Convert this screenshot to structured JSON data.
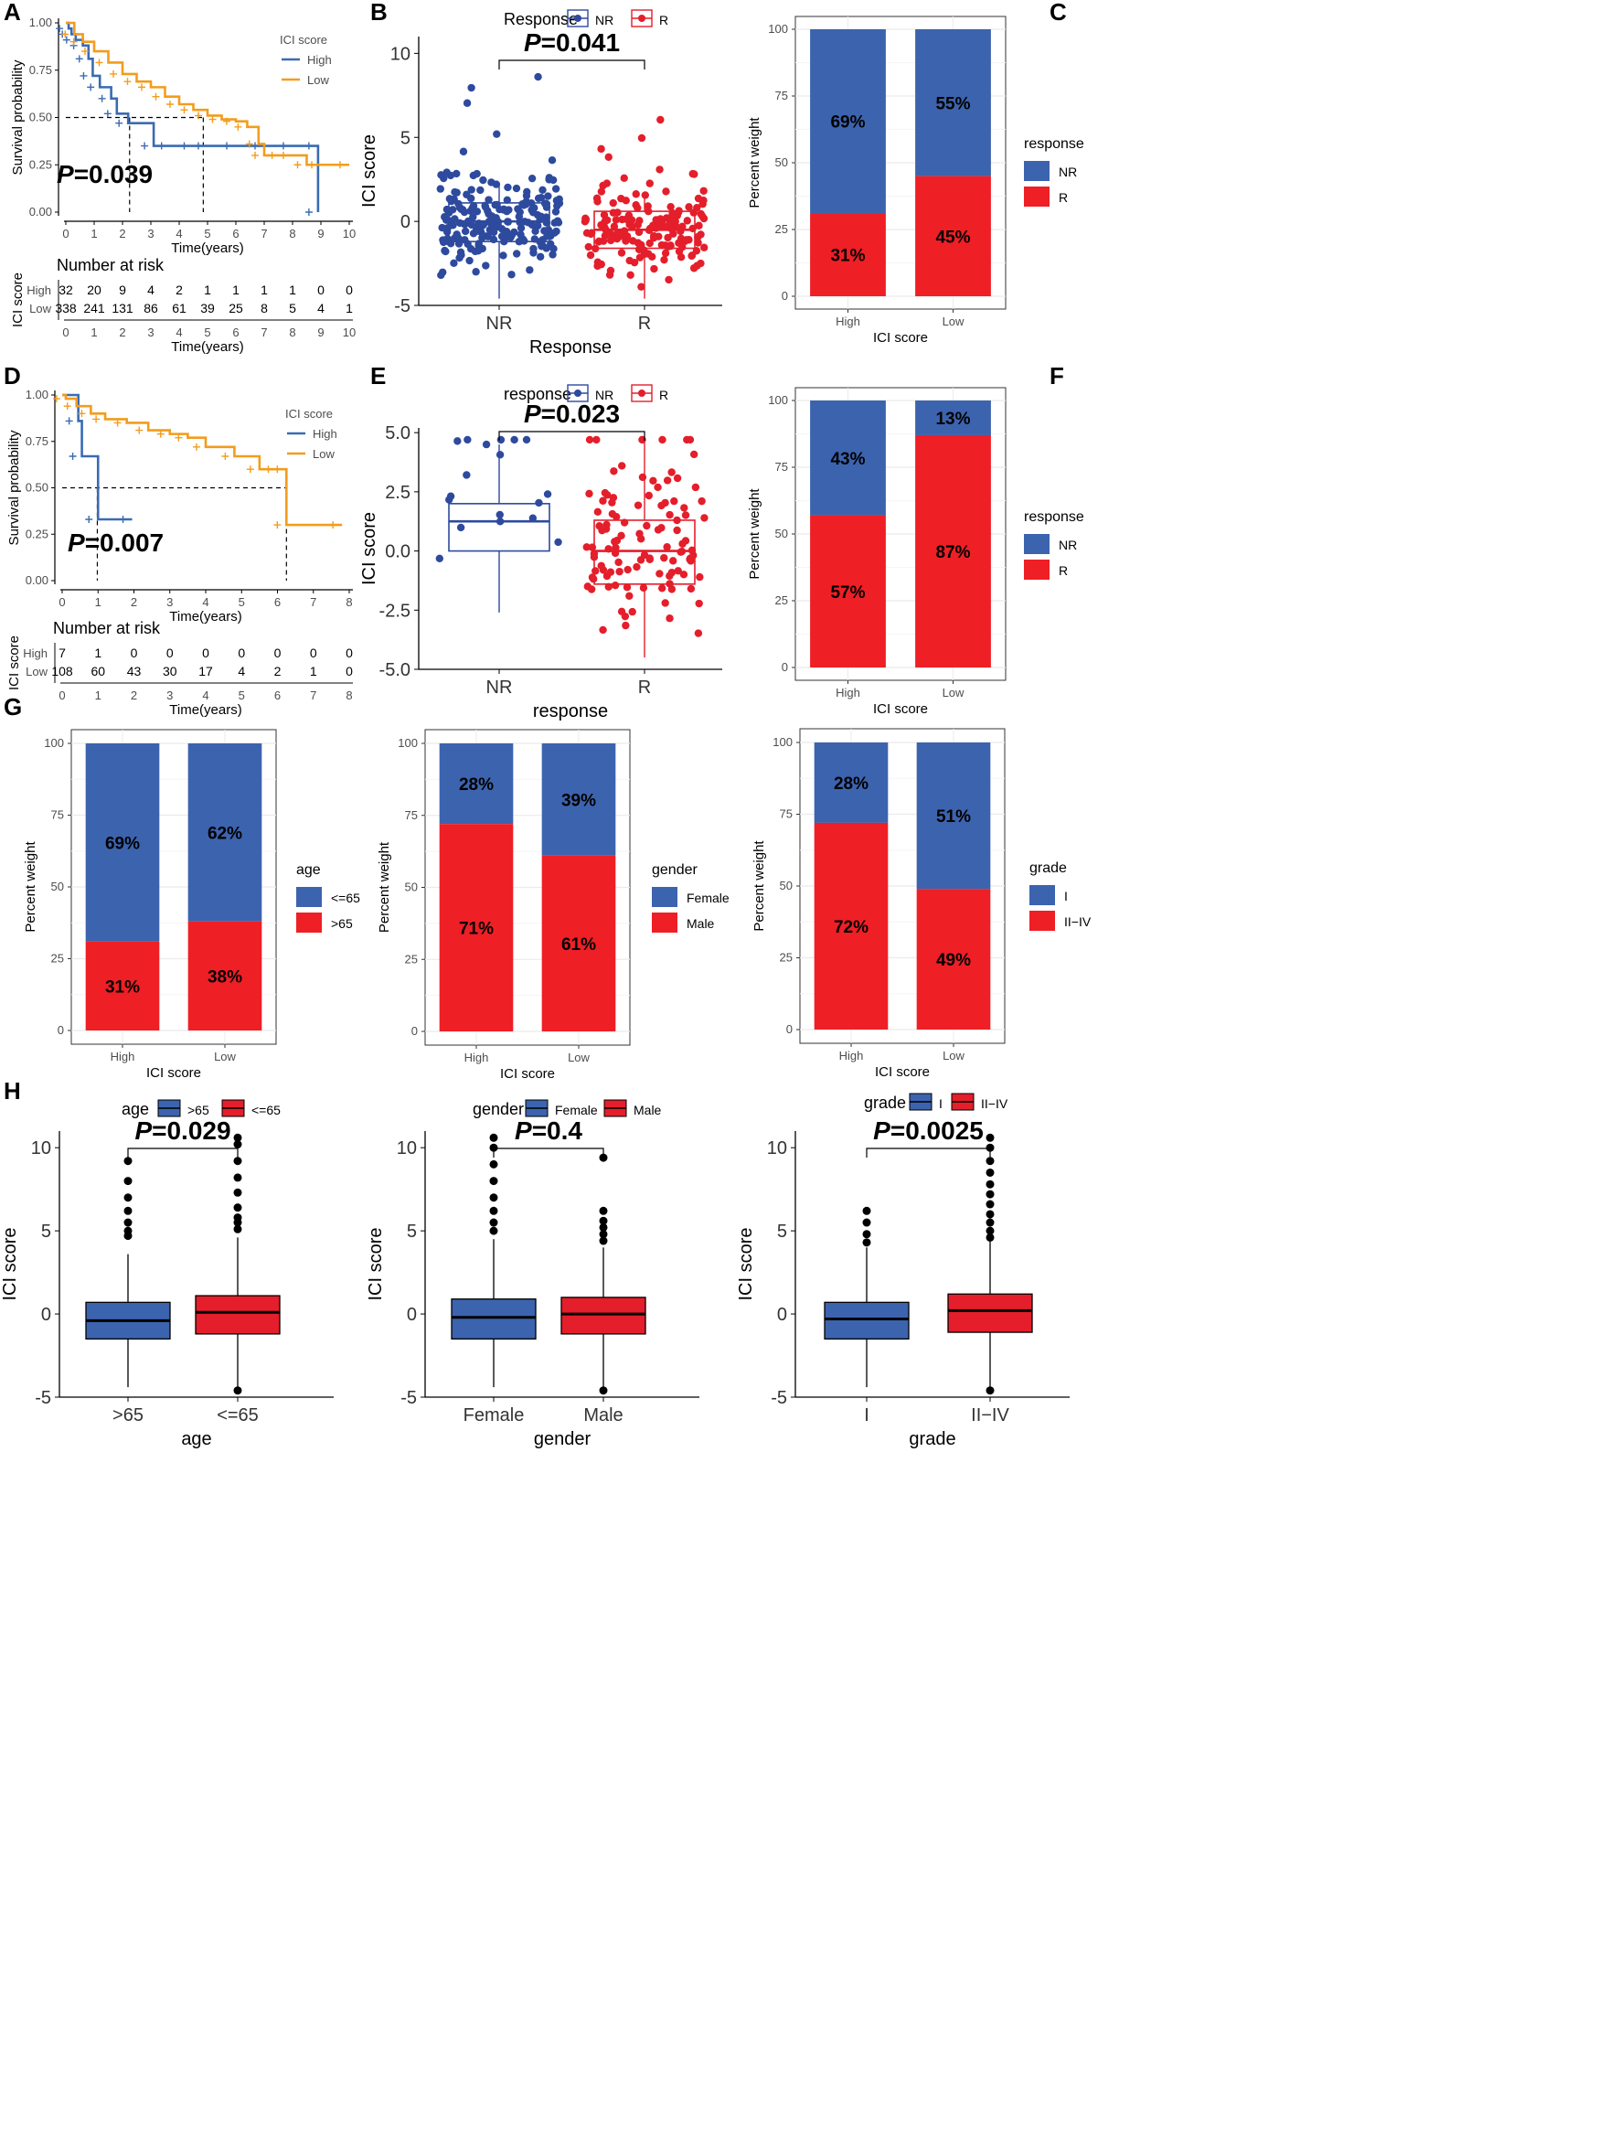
{
  "colors": {
    "blue": "#3C63AE",
    "red": "#EE1F25",
    "orange": "#F39C1C",
    "kmblue": "#3A6BB3",
    "boxblue": "#2E4A9E",
    "boxred": "#E41E2B",
    "grid": "#EBEBEB"
  },
  "chart_data": [
    {
      "id": "A",
      "type": "line",
      "subtype": "kaplan-meier",
      "panel_label": "A",
      "xlabel": "Time(years)",
      "ylabel": "Survival probability",
      "xlim": [
        0,
        10
      ],
      "ylim": [
        0,
        1
      ],
      "xticks": [
        "0",
        "1",
        "2",
        "3",
        "4",
        "5",
        "6",
        "7",
        "8",
        "9",
        "10"
      ],
      "yticks": [
        "0.00",
        "0.25",
        "0.50",
        "0.75",
        "1.00"
      ],
      "legend_title": "ICI score",
      "series": [
        {
          "name": "High",
          "color": "#3A6BB3",
          "x": [
            0,
            0.1,
            0.2,
            0.35,
            0.6,
            0.8,
            0.95,
            1.2,
            1.6,
            1.8,
            2.2,
            3.1,
            3.7,
            4.5,
            5,
            6,
            7,
            8,
            8.9,
            8.9
          ],
          "y": [
            1,
            0.97,
            0.94,
            0.91,
            0.88,
            0.81,
            0.72,
            0.66,
            0.6,
            0.52,
            0.47,
            0.35,
            0.35,
            0.35,
            0.35,
            0.35,
            0.35,
            0.35,
            0.35,
            0
          ]
        },
        {
          "name": "Low",
          "color": "#F39C1C",
          "x": [
            0,
            0.3,
            0.6,
            1,
            1.5,
            2,
            2.5,
            3,
            3.5,
            4,
            4.5,
            5,
            5.5,
            6,
            6.4,
            6.8,
            7,
            7.6,
            8,
            8.5,
            9,
            10
          ],
          "y": [
            1,
            0.94,
            0.9,
            0.85,
            0.79,
            0.73,
            0.69,
            0.66,
            0.61,
            0.57,
            0.54,
            0.51,
            0.49,
            0.48,
            0.45,
            0.36,
            0.3,
            0.3,
            0.3,
            0.25,
            0.25,
            0.25
          ]
        }
      ],
      "pvalue": "P=0.039",
      "pvalue_prefix": "P",
      "pvalue_rest": "=0.039",
      "median_lines": [
        2.25,
        4.85
      ],
      "risk_table": {
        "title": "Number at risk",
        "ylabel": "ICI score",
        "rows": [
          {
            "name": "High",
            "values": [
              "32",
              "20",
              "9",
              "4",
              "2",
              "1",
              "1",
              "1",
              "1",
              "0",
              "0"
            ]
          },
          {
            "name": "Low",
            "values": [
              "338",
              "241",
              "131",
              "86",
              "61",
              "39",
              "25",
              "8",
              "5",
              "4",
              "1"
            ]
          }
        ],
        "xlabel": "Time(years)"
      }
    },
    {
      "id": "B",
      "type": "scatter",
      "subtype": "box-jitter",
      "panel_label": "B",
      "categories": [
        "NR",
        "R"
      ],
      "xlabel": "Response",
      "ylabel": "ICI score",
      "ylim": [
        -5,
        11
      ],
      "yticks": [
        "-5",
        "0",
        "5",
        "10"
      ],
      "legend_title": "Response",
      "legend": [
        "NR",
        "R"
      ],
      "boxes": [
        {
          "name": "NR",
          "q1": -1.2,
          "median": 0,
          "q3": 1.1,
          "whisker_low": -4.6,
          "whisker_high": 2.3
        },
        {
          "name": "R",
          "q1": -1.6,
          "median": -0.5,
          "q3": 0.6,
          "whisker_low": -4.6,
          "whisker_high": 1.6
        }
      ],
      "pvalue": "P=0.041",
      "pvalue_prefix": "P",
      "pvalue_rest": "=0.041"
    },
    {
      "id": "C",
      "type": "bar",
      "subtype": "stacked-percent",
      "panel_label": "C",
      "categories": [
        "High",
        "Low"
      ],
      "xlabel": "ICI score",
      "ylabel": "Percent weight",
      "ylim": [
        0,
        100
      ],
      "yticks": [
        "0",
        "25",
        "50",
        "75",
        "100"
      ],
      "legend_title": "response",
      "series": [
        {
          "name": "NR",
          "color": "#3C63AE",
          "values": [
            69,
            55
          ],
          "labels": [
            "69%",
            "55%"
          ]
        },
        {
          "name": "R",
          "color": "#EE1F25",
          "values": [
            31,
            45
          ],
          "labels": [
            "31%",
            "45%"
          ]
        }
      ]
    },
    {
      "id": "D",
      "type": "line",
      "subtype": "kaplan-meier",
      "panel_label": "D",
      "xlabel": "Time(years)",
      "ylabel": "Survival probability",
      "xlim": [
        0,
        8
      ],
      "ylim": [
        0,
        1
      ],
      "xticks": [
        "0",
        "1",
        "2",
        "3",
        "4",
        "5",
        "6",
        "7",
        "8"
      ],
      "yticks": [
        "0.00",
        "0.25",
        "0.50",
        "0.75",
        "1.00"
      ],
      "legend_title": "ICI score",
      "series": [
        {
          "name": "High",
          "color": "#3A6BB3",
          "x": [
            0,
            0.45,
            0.55,
            1,
            1.95
          ],
          "y": [
            1,
            0.86,
            0.67,
            0.33,
            0.33
          ]
        },
        {
          "name": "Low",
          "color": "#F39C1C",
          "x": [
            0,
            0.1,
            0.4,
            0.8,
            1.2,
            1.8,
            2.4,
            3,
            3.5,
            4,
            4.8,
            5.5,
            6,
            6.25,
            6.25,
            7.8
          ],
          "y": [
            1,
            0.98,
            0.94,
            0.9,
            0.87,
            0.85,
            0.81,
            0.79,
            0.77,
            0.72,
            0.67,
            0.6,
            0.6,
            0.6,
            0.3,
            0.3
          ]
        }
      ],
      "pvalue": "P=0.007",
      "pvalue_prefix": "P",
      "pvalue_rest": "=0.007",
      "median_lines": [
        0.98,
        6.25
      ],
      "risk_table": {
        "title": "Number at risk",
        "ylabel": "ICI score",
        "rows": [
          {
            "name": "High",
            "values": [
              "7",
              "1",
              "0",
              "0",
              "0",
              "0",
              "0",
              "0",
              "0"
            ]
          },
          {
            "name": "Low",
            "values": [
              "108",
              "60",
              "43",
              "30",
              "17",
              "4",
              "2",
              "1",
              "0"
            ]
          }
        ],
        "xlabel": "Time(years)"
      }
    },
    {
      "id": "E",
      "type": "scatter",
      "subtype": "box-jitter",
      "panel_label": "E",
      "categories": [
        "NR",
        "R"
      ],
      "xlabel": "response",
      "ylabel": "ICI score",
      "ylim": [
        -5,
        5.2
      ],
      "yticks": [
        "-5.0",
        "-2.5",
        "0.0",
        "2.5",
        "5.0"
      ],
      "legend_title": "response",
      "legend": [
        "NR",
        "R"
      ],
      "boxes": [
        {
          "name": "NR",
          "q1": 0,
          "median": 1.25,
          "q3": 2,
          "whisker_low": -2.6,
          "whisker_high": 4.5
        },
        {
          "name": "R",
          "q1": -1.4,
          "median": 0,
          "q3": 1.3,
          "whisker_low": -4.5,
          "whisker_high": 4.8
        }
      ],
      "pvalue": "P=0.023",
      "pvalue_prefix": "P",
      "pvalue_rest": "=0.023"
    },
    {
      "id": "F",
      "type": "bar",
      "subtype": "stacked-percent",
      "panel_label": "F",
      "categories": [
        "High",
        "Low"
      ],
      "xlabel": "ICI score",
      "ylabel": "Percent weight",
      "ylim": [
        0,
        100
      ],
      "yticks": [
        "0",
        "25",
        "50",
        "75",
        "100"
      ],
      "legend_title": "response",
      "series": [
        {
          "name": "NR",
          "color": "#3C63AE",
          "values": [
            43,
            13
          ],
          "labels": [
            "43%",
            "13%"
          ]
        },
        {
          "name": "R",
          "color": "#EE1F25",
          "values": [
            57,
            87
          ],
          "labels": [
            "57%",
            "87%"
          ]
        }
      ]
    },
    {
      "id": "G1",
      "type": "bar",
      "subtype": "stacked-percent",
      "panel_label": "G",
      "categories": [
        "High",
        "Low"
      ],
      "xlabel": "ICI score",
      "ylabel": "Percent weight",
      "ylim": [
        0,
        100
      ],
      "yticks": [
        "0",
        "25",
        "50",
        "75",
        "100"
      ],
      "legend_title": "age",
      "series": [
        {
          "name": "<=65",
          "color": "#3C63AE",
          "values": [
            69,
            62
          ],
          "labels": [
            "69%",
            "62%"
          ]
        },
        {
          "name": ">65",
          "color": "#EE1F25",
          "values": [
            31,
            38
          ],
          "labels": [
            "31%",
            "38%"
          ]
        }
      ]
    },
    {
      "id": "G2",
      "type": "bar",
      "subtype": "stacked-percent",
      "panel_label": "",
      "categories": [
        "High",
        "Low"
      ],
      "xlabel": "ICI score",
      "ylabel": "Percent weight",
      "ylim": [
        0,
        100
      ],
      "yticks": [
        "0",
        "25",
        "50",
        "75",
        "100"
      ],
      "legend_title": "gender",
      "series": [
        {
          "name": "Female",
          "color": "#3C63AE",
          "values": [
            28,
            39
          ],
          "labels": [
            "28%",
            "39%"
          ]
        },
        {
          "name": "Male",
          "color": "#EE1F25",
          "values": [
            71,
            61
          ],
          "labels": [
            "71%",
            "61%"
          ]
        }
      ]
    },
    {
      "id": "G3",
      "type": "bar",
      "subtype": "stacked-percent",
      "panel_label": "",
      "categories": [
        "High",
        "Low"
      ],
      "xlabel": "ICI score",
      "ylabel": "Percent weight",
      "ylim": [
        0,
        100
      ],
      "yticks": [
        "0",
        "25",
        "50",
        "75",
        "100"
      ],
      "legend_title": "grade",
      "series": [
        {
          "name": "I",
          "color": "#3C63AE",
          "values": [
            28,
            51
          ],
          "labels": [
            "28%",
            "51%"
          ]
        },
        {
          "name": "II−IV",
          "color": "#EE1F25",
          "values": [
            72,
            49
          ],
          "labels": [
            "72%",
            "49%"
          ]
        }
      ]
    },
    {
      "id": "H1",
      "type": "box",
      "panel_label": "H",
      "categories": [
        ">65",
        "<=65"
      ],
      "xlabel": "age",
      "ylabel": "ICI score",
      "ylim": [
        -5,
        11
      ],
      "yticks": [
        "-5",
        "0",
        "5",
        "10"
      ],
      "legend_title": "age",
      "legend": [
        ">65",
        "<=65"
      ],
      "boxes": [
        {
          "name": ">65",
          "q1": -1.5,
          "median": -0.4,
          "q3": 0.7,
          "whisker_low": -4.4,
          "whisker_high": 3.6,
          "outliers": [
            4.7,
            5.0,
            5.5,
            6.2,
            7.0,
            8.0,
            9.2
          ]
        },
        {
          "name": "<=65",
          "q1": -1.2,
          "median": 0.1,
          "q3": 1.1,
          "whisker_low": -4.4,
          "whisker_high": 4.6,
          "outliers": [
            -4.6,
            5.1,
            5.5,
            5.8,
            6.4,
            7.3,
            8.2,
            9.2,
            10.2,
            10.6
          ]
        }
      ],
      "pvalue": "P=0.029",
      "pvalue_prefix": "P",
      "pvalue_rest": "=0.029"
    },
    {
      "id": "H2",
      "type": "box",
      "panel_label": "",
      "categories": [
        "Female",
        "Male"
      ],
      "xlabel": "gender",
      "ylabel": "ICI score",
      "ylim": [
        -5,
        11
      ],
      "yticks": [
        "-5",
        "0",
        "5",
        "10"
      ],
      "legend_title": "gender",
      "legend": [
        "Female",
        "Male"
      ],
      "boxes": [
        {
          "name": "Female",
          "q1": -1.5,
          "median": -0.2,
          "q3": 0.9,
          "whisker_low": -4.4,
          "whisker_high": 4.5,
          "outliers": [
            5.0,
            5.5,
            6.2,
            7.0,
            8.0,
            9.0,
            10.0,
            10.6
          ]
        },
        {
          "name": "Male",
          "q1": -1.2,
          "median": 0,
          "q3": 1.0,
          "whisker_low": -4.4,
          "whisker_high": 4.0,
          "outliers": [
            -4.6,
            4.4,
            4.8,
            5.2,
            5.6,
            6.2,
            9.4
          ]
        }
      ],
      "pvalue": "P=0.4",
      "pvalue_prefix": "P",
      "pvalue_rest": "=0.4"
    },
    {
      "id": "H3",
      "type": "box",
      "panel_label": "",
      "categories": [
        "I",
        "II−IV"
      ],
      "xlabel": "grade",
      "ylabel": "ICI score",
      "ylim": [
        -5,
        11
      ],
      "yticks": [
        "-5",
        "0",
        "5",
        "10"
      ],
      "legend_title": "grade",
      "legend": [
        "I",
        "II−IV"
      ],
      "boxes": [
        {
          "name": "I",
          "q1": -1.5,
          "median": -0.3,
          "q3": 0.7,
          "whisker_low": -4.4,
          "whisker_high": 4.0,
          "outliers": [
            4.3,
            4.8,
            5.5,
            6.2
          ]
        },
        {
          "name": "II−IV",
          "q1": -1.1,
          "median": 0.2,
          "q3": 1.2,
          "whisker_low": -4.4,
          "whisker_high": 4.4,
          "outliers": [
            -4.6,
            4.6,
            5.0,
            5.5,
            6.0,
            6.6,
            7.2,
            7.8,
            8.5,
            9.2,
            10.0,
            10.6
          ]
        }
      ],
      "pvalue": "P=0.0025",
      "pvalue_prefix": "P",
      "pvalue_rest": "=0.0025"
    }
  ]
}
